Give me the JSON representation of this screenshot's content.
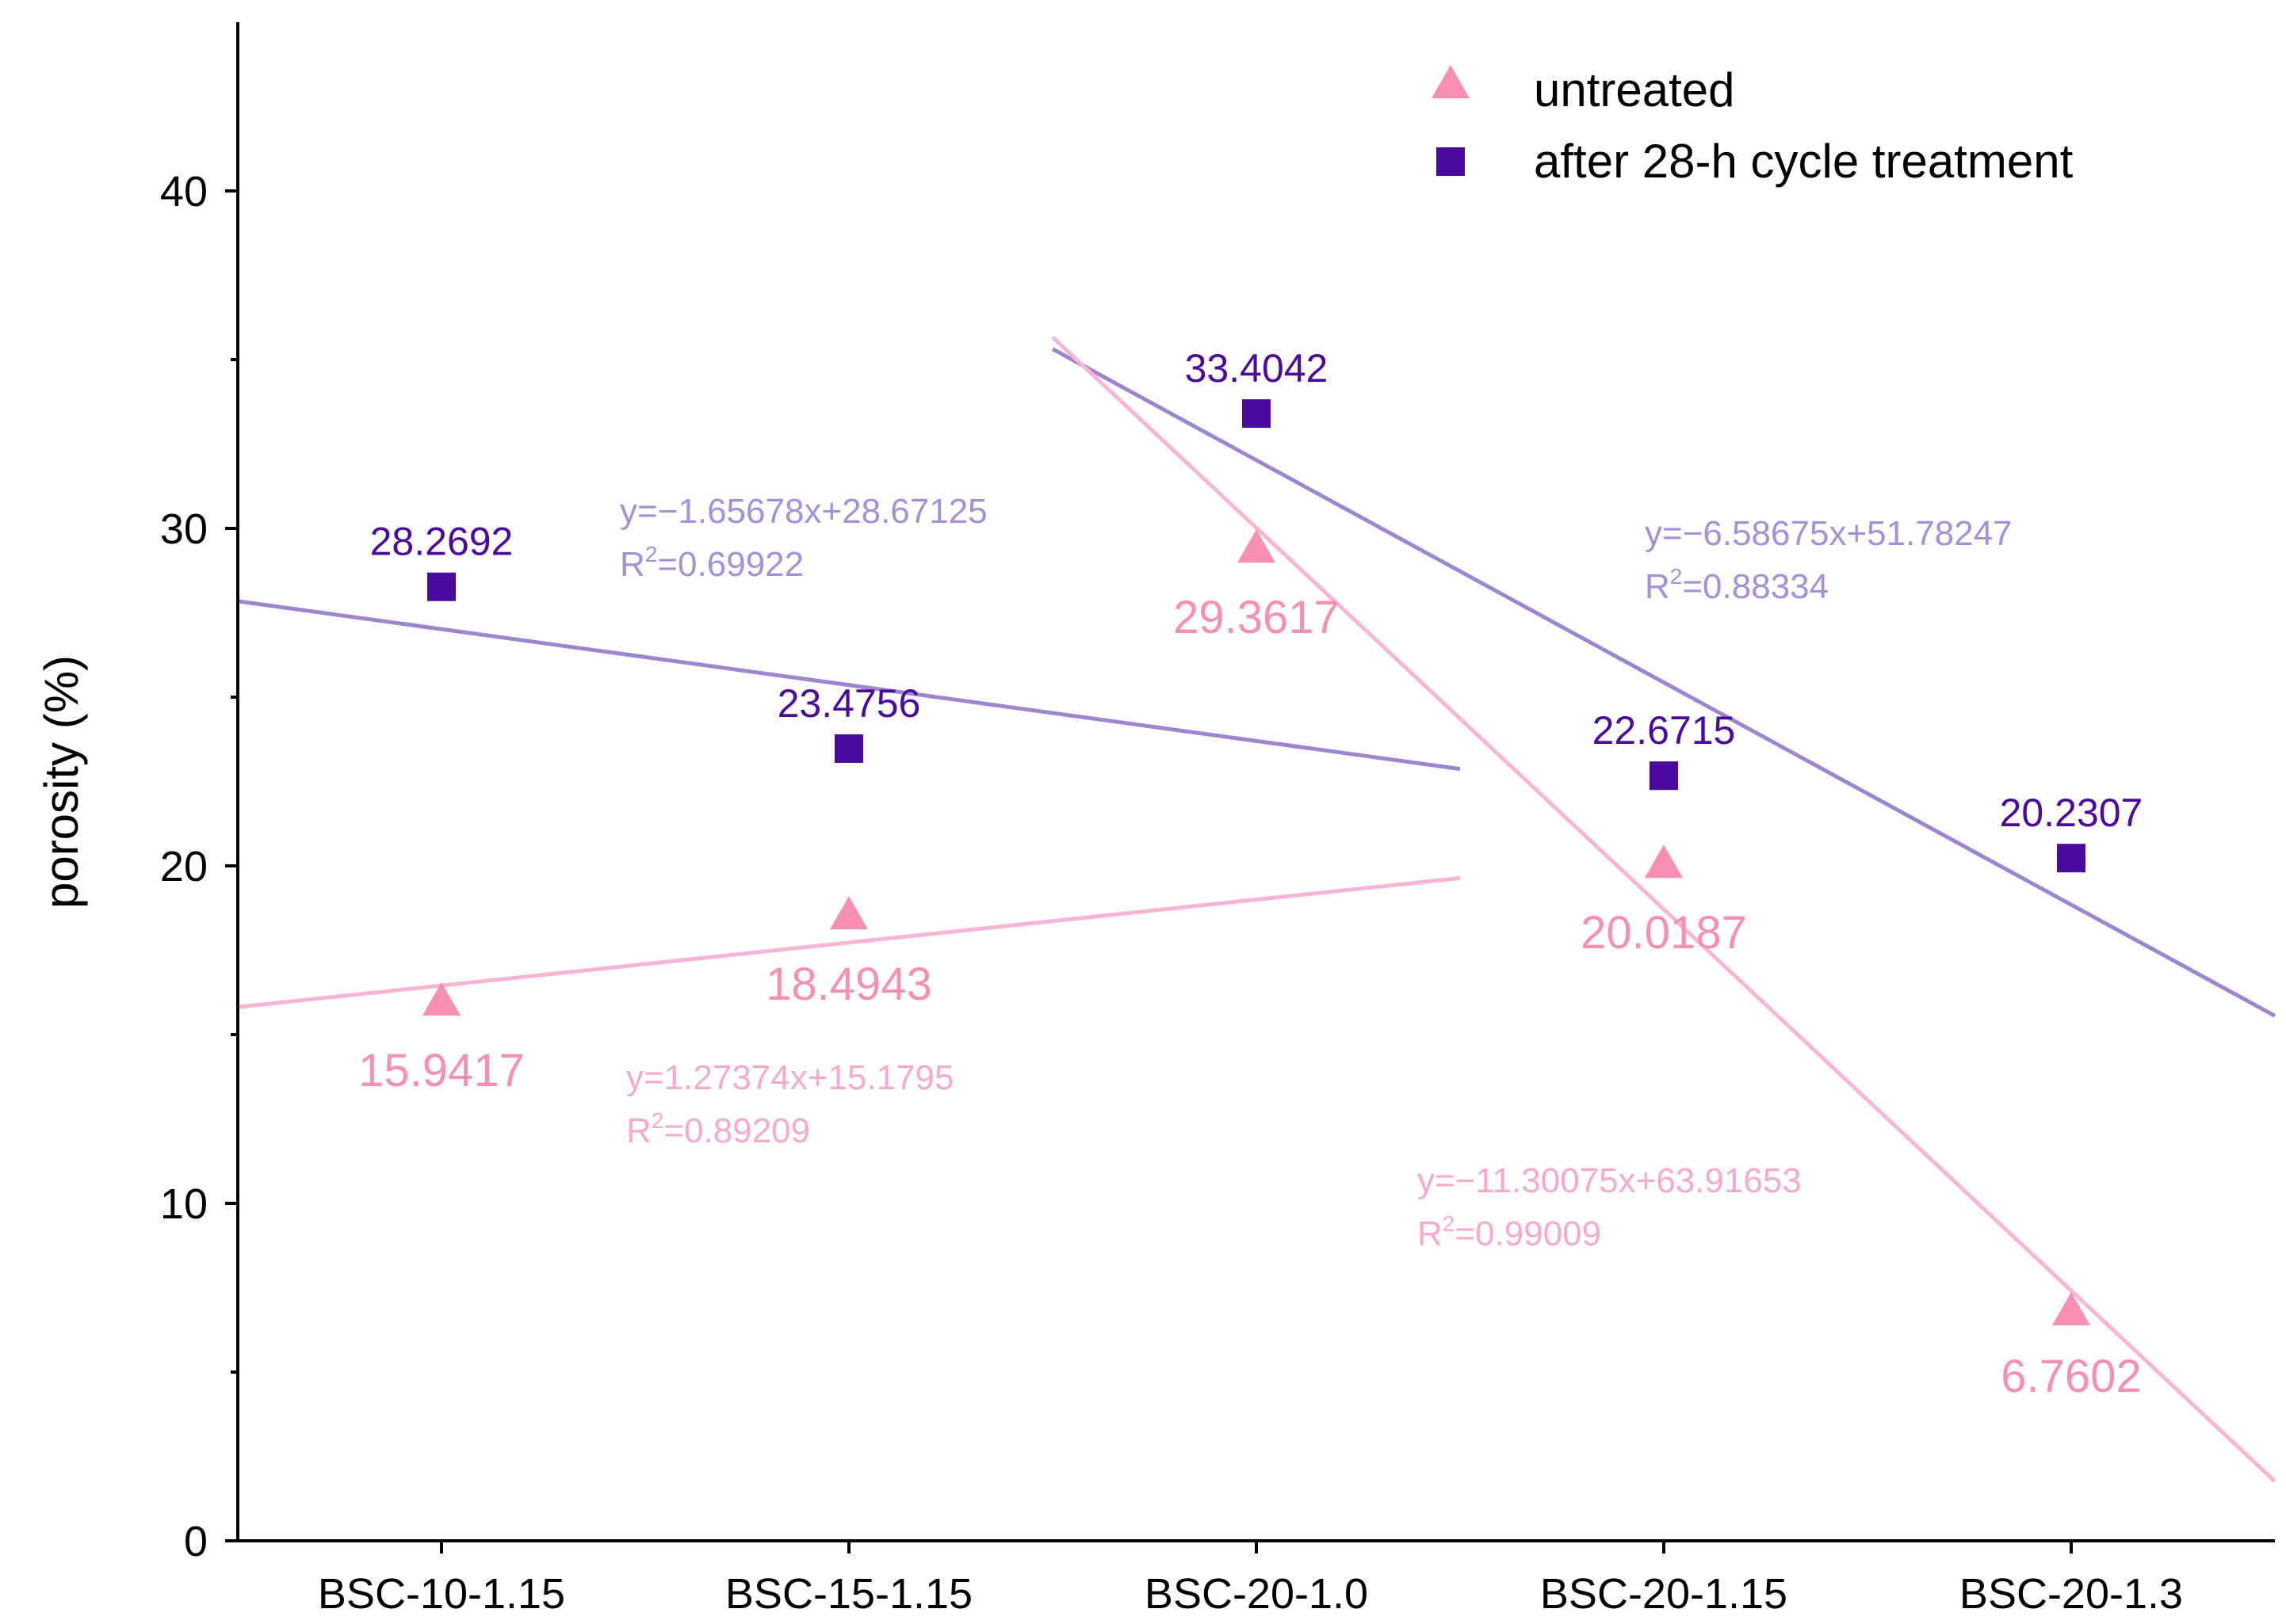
{
  "chart_data": {
    "type": "scatter",
    "title": "",
    "xlabel": "",
    "ylabel": "porosity (%)",
    "ylim": [
      0,
      45
    ],
    "yticks": [
      0,
      10,
      20,
      30,
      40
    ],
    "xlim": [
      0.5,
      5.5
    ],
    "categories": [
      "BSC-10-1.15",
      "BSC-15-1.15",
      "BSC-20-1.0",
      "BSC-20-1.15",
      "BSC-20-1.3"
    ],
    "legend_position": "top-right",
    "series": [
      {
        "name": "untreated",
        "marker": "triangle",
        "color": "#f78fb3",
        "values": [
          15.9417,
          18.4943,
          29.3617,
          20.0187,
          6.7602
        ],
        "labels": [
          "15.9417",
          "18.4943",
          "29.3617",
          "20.0187",
          "6.7602"
        ]
      },
      {
        "name": "after 28-h cycle treatment",
        "marker": "square",
        "color": "#4b0a9e",
        "values": [
          28.2692,
          23.4756,
          33.4042,
          22.6715,
          20.2307
        ],
        "labels": [
          "28.2692",
          "23.4756",
          "33.4042",
          "22.6715",
          "20.2307"
        ]
      }
    ],
    "fits": [
      {
        "series": "after 28-h cycle treatment",
        "slope": -1.65678,
        "intercept": 28.67125,
        "x_range": [
          0.5,
          3.5
        ],
        "color": "#a48fd8",
        "line_color": "#9e85d0",
        "equation": "y=−1.65678x+28.67125",
        "r2_prefix": "R",
        "r2_value": "=0.69922"
      },
      {
        "series": "untreated",
        "slope": 1.27374,
        "intercept": 15.1795,
        "x_range": [
          0.5,
          3.5
        ],
        "color": "#f6a8cf",
        "line_color": "#f8b4d7",
        "equation": "y=1.27374x+15.1795",
        "r2_prefix": "R",
        "r2_value": "=0.89209"
      },
      {
        "series": "after 28-h cycle treatment",
        "slope": -6.58675,
        "intercept": 51.78247,
        "x_range": [
          2.5,
          5.5
        ],
        "color": "#a48fd8",
        "line_color": "#9e85d0",
        "equation": "y=−6.58675x+51.78247",
        "r2_prefix": "R",
        "r2_value": "=0.88334"
      },
      {
        "series": "untreated",
        "slope": -11.30075,
        "intercept": 63.91653,
        "x_range": [
          2.5,
          5.5
        ],
        "color": "#f6a8cf",
        "line_color": "#f8b4d7",
        "equation": "y=−11.30075x+63.91653",
        "r2_prefix": "R",
        "r2_value": "=0.99009"
      }
    ]
  }
}
